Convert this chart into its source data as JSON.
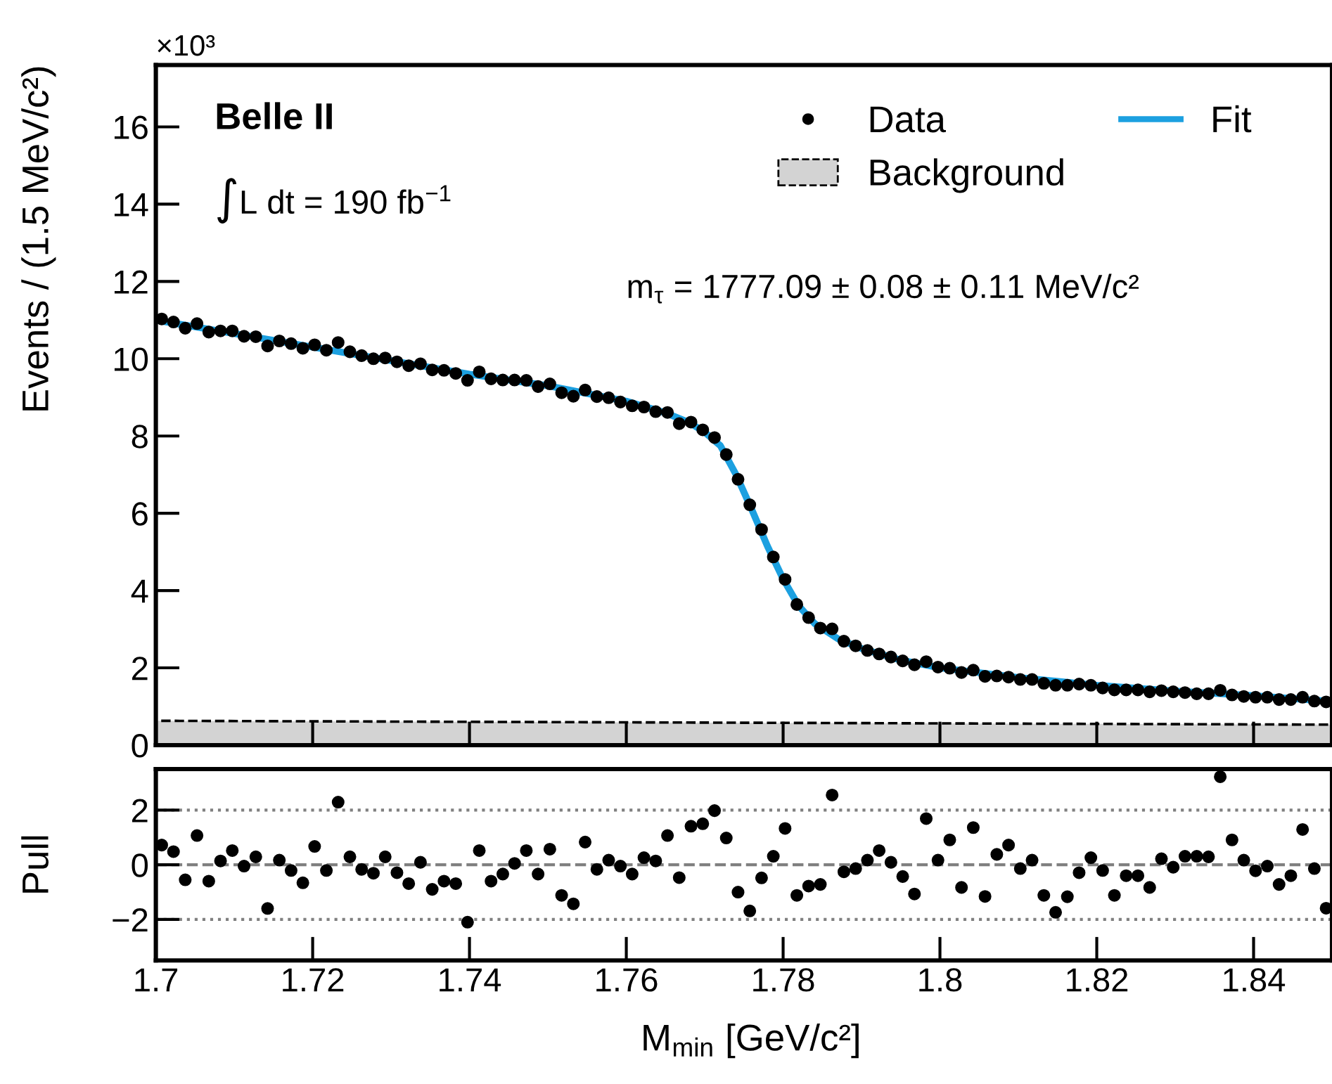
{
  "chart_data": [
    {
      "type": "scatter",
      "ylabel": "Events / (1.5 MeV/c²)",
      "xlim": [
        1.7,
        1.85
      ],
      "xticks": [
        1.7,
        1.72,
        1.74,
        1.76,
        1.78,
        1.8,
        1.82,
        1.84
      ],
      "ylim": [
        0,
        17.6
      ],
      "yticks": [
        0,
        2,
        4,
        6,
        8,
        10,
        12,
        14,
        16
      ],
      "tick_labels": "y",
      "legend": "top right",
      "grid": false,
      "annotations": [
        "×10³",
        "Belle II",
        "∫L dt = 190 fb$^{−1}$",
        "m$_{τ}$ = 1777.09 ± 0.08 ± 0.11 MeV/c²"
      ],
      "series": [
        {
          "name": "Background",
          "type": "area",
          "color": "#d3d3d3",
          "line_style": "dashed",
          "x": [
            1.7,
            1.85
          ],
          "values": [
            0.63,
            0.53
          ]
        },
        {
          "name": "Fit",
          "type": "line",
          "color": "#1ca0e0",
          "line_style": "solid",
          "marker": "none",
          "x": [
            1.7,
            1.71,
            1.72,
            1.73,
            1.74,
            1.75,
            1.755,
            1.76,
            1.765,
            1.768,
            1.77,
            1.772,
            1.774,
            1.776,
            1.778,
            1.78,
            1.782,
            1.784,
            1.787,
            1.79,
            1.795,
            1.8,
            1.81,
            1.82,
            1.83,
            1.84,
            1.85
          ],
          "values": [
            11.0,
            10.65,
            10.3,
            9.95,
            9.6,
            9.3,
            9.1,
            8.9,
            8.6,
            8.35,
            8.1,
            7.75,
            7.0,
            6.1,
            5.15,
            4.3,
            3.6,
            3.15,
            2.75,
            2.5,
            2.2,
            2.0,
            1.75,
            1.55,
            1.4,
            1.28,
            1.13
          ]
        },
        {
          "name": "Data",
          "type": "scatter",
          "color": "#000000",
          "marker": "circle",
          "x": [
            1.70075,
            1.70225,
            1.70375,
            1.70525,
            1.70675,
            1.70825,
            1.70975,
            1.71125,
            1.71275,
            1.71425,
            1.71575,
            1.71725,
            1.71875,
            1.72025,
            1.72175,
            1.72325,
            1.72475,
            1.72625,
            1.72775,
            1.72925,
            1.73075,
            1.73225,
            1.73375,
            1.73525,
            1.73675,
            1.73825,
            1.73975,
            1.74125,
            1.74275,
            1.74425,
            1.74575,
            1.74725,
            1.74875,
            1.75025,
            1.75175,
            1.75325,
            1.75475,
            1.75625,
            1.75775,
            1.75925,
            1.76075,
            1.76225,
            1.76375,
            1.76525,
            1.76675,
            1.76825,
            1.76975,
            1.77125,
            1.77275,
            1.77425,
            1.77575,
            1.77725,
            1.77875,
            1.78025,
            1.78175,
            1.78325,
            1.78475,
            1.78625,
            1.78775,
            1.78925,
            1.79075,
            1.79225,
            1.79375,
            1.79525,
            1.79675,
            1.79825,
            1.79975,
            1.80125,
            1.80275,
            1.80425,
            1.80575,
            1.80725,
            1.80875,
            1.81025,
            1.81175,
            1.81325,
            1.81475,
            1.81625,
            1.81775,
            1.81925,
            1.82075,
            1.82225,
            1.82375,
            1.82525,
            1.82675,
            1.82825,
            1.82975,
            1.83125,
            1.83275,
            1.83425,
            1.83575,
            1.83725,
            1.83875,
            1.84025,
            1.84175,
            1.84325,
            1.84475,
            1.84625,
            1.84775,
            1.84925
          ],
          "values": [
            11.03,
            10.95,
            10.79,
            10.91,
            10.69,
            10.72,
            10.72,
            10.58,
            10.57,
            10.33,
            10.46,
            10.39,
            10.27,
            10.36,
            10.22,
            10.42,
            10.18,
            10.08,
            10.0,
            10.02,
            9.92,
            9.82,
            9.87,
            9.71,
            9.7,
            9.62,
            9.44,
            9.66,
            9.48,
            9.45,
            9.45,
            9.44,
            9.28,
            9.35,
            9.12,
            9.03,
            9.19,
            9.02,
            8.99,
            8.88,
            8.78,
            8.75,
            8.63,
            8.61,
            8.32,
            8.36,
            8.16,
            7.96,
            7.52,
            6.88,
            6.22,
            5.58,
            4.87,
            4.29,
            3.64,
            3.3,
            3.03,
            3.01,
            2.69,
            2.57,
            2.45,
            2.36,
            2.28,
            2.18,
            2.08,
            2.16,
            2.02,
            1.99,
            1.88,
            1.94,
            1.78,
            1.79,
            1.76,
            1.7,
            1.7,
            1.6,
            1.55,
            1.55,
            1.58,
            1.55,
            1.48,
            1.43,
            1.43,
            1.43,
            1.38,
            1.41,
            1.38,
            1.36,
            1.33,
            1.33,
            1.42,
            1.3,
            1.26,
            1.24,
            1.24,
            1.18,
            1.18,
            1.24,
            1.14,
            1.12
          ]
        }
      ]
    },
    {
      "type": "scatter",
      "xlabel": "M$_{min}$ [GeV/c²]",
      "ylabel": "Pull",
      "xlim": [
        1.7,
        1.85
      ],
      "xticks": [
        1.7,
        1.72,
        1.74,
        1.76,
        1.78,
        1.8,
        1.82,
        1.84
      ],
      "ylim": [
        -3.5,
        3.5
      ],
      "yticks": [
        {
          "value": -2,
          "label": "−2"
        },
        0,
        2
      ],
      "grid": false,
      "marker": "circle",
      "ref_lines": [
        {
          "axis": "y",
          "value": 2,
          "color": "#808080",
          "line_style": "dotted"
        },
        {
          "axis": "y",
          "value": 0,
          "color": "#808080",
          "line_style": "dashed"
        },
        {
          "axis": "y",
          "value": -2,
          "color": "#808080",
          "line_style": "dotted"
        }
      ],
      "series": [
        {
          "color": "#000000",
          "x": [
            1.70075,
            1.70225,
            1.70375,
            1.70525,
            1.70675,
            1.70825,
            1.70975,
            1.71125,
            1.71275,
            1.71425,
            1.71575,
            1.71725,
            1.71875,
            1.72025,
            1.72175,
            1.72325,
            1.72475,
            1.72625,
            1.72775,
            1.72925,
            1.73075,
            1.73225,
            1.73375,
            1.73525,
            1.73675,
            1.73825,
            1.73975,
            1.74125,
            1.74275,
            1.74425,
            1.74575,
            1.74725,
            1.74875,
            1.75025,
            1.75175,
            1.75325,
            1.75475,
            1.75625,
            1.75775,
            1.75925,
            1.76075,
            1.76225,
            1.76375,
            1.76525,
            1.76675,
            1.76825,
            1.76975,
            1.77125,
            1.77275,
            1.77425,
            1.77575,
            1.77725,
            1.77875,
            1.78025,
            1.78175,
            1.78325,
            1.78475,
            1.78625,
            1.78775,
            1.78925,
            1.79075,
            1.79225,
            1.79375,
            1.79525,
            1.79675,
            1.79825,
            1.79975,
            1.80125,
            1.80275,
            1.80425,
            1.80575,
            1.80725,
            1.80875,
            1.81025,
            1.81175,
            1.81325,
            1.81475,
            1.81625,
            1.81775,
            1.81925,
            1.82075,
            1.82225,
            1.82375,
            1.82525,
            1.82675,
            1.82825,
            1.82975,
            1.83125,
            1.83275,
            1.83425,
            1.83575,
            1.83725,
            1.83875,
            1.84025,
            1.84175,
            1.84325,
            1.84475,
            1.84625,
            1.84775,
            1.84925
          ],
          "values": [
            0.72,
            0.48,
            -0.55,
            1.07,
            -0.6,
            0.14,
            0.52,
            -0.05,
            0.29,
            -1.6,
            0.17,
            -0.21,
            -0.66,
            0.67,
            -0.21,
            2.29,
            0.29,
            -0.17,
            -0.31,
            0.29,
            -0.29,
            -0.69,
            0.09,
            -0.9,
            -0.6,
            -0.69,
            -2.1,
            0.52,
            -0.6,
            -0.34,
            0.05,
            0.52,
            -0.34,
            0.57,
            -1.12,
            -1.43,
            0.83,
            -0.17,
            0.17,
            -0.05,
            -0.34,
            0.26,
            0.14,
            1.07,
            -0.47,
            1.41,
            1.5,
            1.98,
            0.98,
            -1.0,
            -1.69,
            -0.48,
            0.31,
            1.33,
            -1.12,
            -0.78,
            -0.72,
            2.55,
            -0.26,
            -0.14,
            0.17,
            0.52,
            0.09,
            -0.43,
            -1.07,
            1.69,
            0.17,
            0.91,
            -0.83,
            1.36,
            -1.16,
            0.38,
            0.72,
            -0.14,
            0.17,
            -1.12,
            -1.74,
            -1.17,
            -0.29,
            0.26,
            -0.21,
            -1.12,
            -0.4,
            -0.4,
            -0.83,
            0.22,
            -0.09,
            0.31,
            0.31,
            0.29,
            3.22,
            0.91,
            0.17,
            -0.22,
            -0.05,
            -0.72,
            -0.4,
            1.29,
            -0.14,
            -1.59
          ]
        }
      ]
    }
  ]
}
